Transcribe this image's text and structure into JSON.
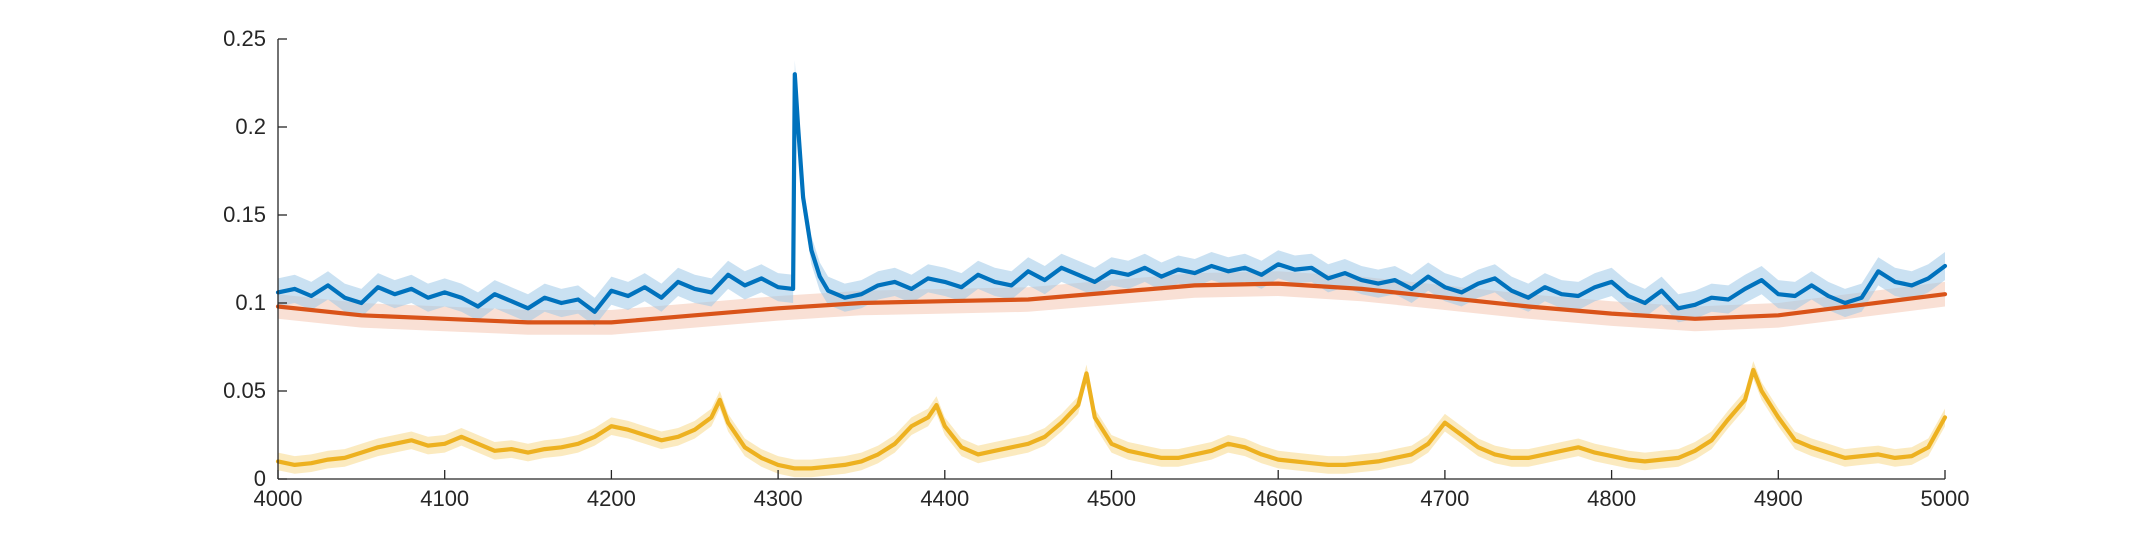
{
  "chart_data": {
    "type": "line",
    "title": "",
    "xlabel": "",
    "ylabel": "",
    "xlim": [
      4000,
      5000
    ],
    "ylim": [
      0,
      0.25
    ],
    "grid": false,
    "legend": "none",
    "x_ticks": [
      {
        "value": 4000,
        "label": "4000"
      },
      {
        "value": 4100,
        "label": "4100"
      },
      {
        "value": 4200,
        "label": "4200"
      },
      {
        "value": 4300,
        "label": "4300"
      },
      {
        "value": 4400,
        "label": "4400"
      },
      {
        "value": 4500,
        "label": "4500"
      },
      {
        "value": 4600,
        "label": "4600"
      },
      {
        "value": 4700,
        "label": "4700"
      },
      {
        "value": 4800,
        "label": "4800"
      },
      {
        "value": 4900,
        "label": "4900"
      },
      {
        "value": 5000,
        "label": "5000"
      }
    ],
    "y_ticks": [
      {
        "value": 0,
        "label": "0"
      },
      {
        "value": 0.05,
        "label": "0.05"
      },
      {
        "value": 0.1,
        "label": "0.1"
      },
      {
        "value": 0.15,
        "label": "0.15"
      },
      {
        "value": 0.2,
        "label": "0.2"
      },
      {
        "value": 0.25,
        "label": "0.25"
      }
    ],
    "series": [
      {
        "color": "#0072BD",
        "band_color": "#9FC8E8",
        "band_half_width": 0.008,
        "x": [
          4000,
          4010,
          4020,
          4030,
          4040,
          4050,
          4060,
          4070,
          4080,
          4090,
          4100,
          4110,
          4120,
          4130,
          4140,
          4150,
          4160,
          4170,
          4180,
          4190,
          4200,
          4210,
          4220,
          4230,
          4240,
          4250,
          4260,
          4270,
          4280,
          4290,
          4300,
          4309,
          4310,
          4312,
          4315,
          4320,
          4325,
          4330,
          4340,
          4350,
          4360,
          4370,
          4380,
          4390,
          4400,
          4410,
          4420,
          4430,
          4440,
          4450,
          4460,
          4470,
          4480,
          4490,
          4500,
          4510,
          4520,
          4530,
          4540,
          4550,
          4560,
          4570,
          4580,
          4590,
          4600,
          4610,
          4620,
          4630,
          4640,
          4650,
          4660,
          4670,
          4680,
          4690,
          4700,
          4710,
          4720,
          4730,
          4740,
          4750,
          4760,
          4770,
          4780,
          4790,
          4800,
          4810,
          4820,
          4830,
          4840,
          4850,
          4860,
          4870,
          4880,
          4890,
          4900,
          4910,
          4920,
          4930,
          4940,
          4950,
          4960,
          4970,
          4980,
          4990,
          5000
        ],
        "y": [
          0.106,
          0.108,
          0.104,
          0.11,
          0.103,
          0.1,
          0.109,
          0.105,
          0.108,
          0.103,
          0.106,
          0.103,
          0.098,
          0.105,
          0.101,
          0.097,
          0.103,
          0.1,
          0.102,
          0.095,
          0.107,
          0.104,
          0.109,
          0.103,
          0.112,
          0.108,
          0.106,
          0.116,
          0.11,
          0.114,
          0.109,
          0.108,
          0.23,
          0.2,
          0.16,
          0.13,
          0.115,
          0.107,
          0.103,
          0.105,
          0.11,
          0.112,
          0.108,
          0.114,
          0.112,
          0.109,
          0.116,
          0.112,
          0.11,
          0.118,
          0.113,
          0.12,
          0.116,
          0.112,
          0.118,
          0.116,
          0.12,
          0.115,
          0.119,
          0.117,
          0.121,
          0.118,
          0.12,
          0.116,
          0.122,
          0.119,
          0.12,
          0.114,
          0.117,
          0.113,
          0.111,
          0.113,
          0.108,
          0.115,
          0.109,
          0.106,
          0.111,
          0.114,
          0.107,
          0.103,
          0.109,
          0.105,
          0.104,
          0.109,
          0.112,
          0.104,
          0.1,
          0.107,
          0.097,
          0.099,
          0.103,
          0.102,
          0.108,
          0.113,
          0.105,
          0.104,
          0.11,
          0.104,
          0.1,
          0.103,
          0.118,
          0.112,
          0.11,
          0.114,
          0.121
        ]
      },
      {
        "color": "#D95319",
        "band_color": "#F4C7B3",
        "band_half_width": 0.007,
        "x": [
          4000,
          4050,
          4100,
          4150,
          4200,
          4250,
          4300,
          4350,
          4400,
          4450,
          4500,
          4550,
          4600,
          4650,
          4700,
          4750,
          4800,
          4850,
          4900,
          4950,
          5000
        ],
        "y": [
          0.098,
          0.093,
          0.091,
          0.089,
          0.089,
          0.093,
          0.097,
          0.1,
          0.101,
          0.102,
          0.106,
          0.11,
          0.111,
          0.108,
          0.103,
          0.098,
          0.094,
          0.091,
          0.093,
          0.099,
          0.105
        ]
      },
      {
        "color": "#EDB120",
        "band_color": "#F7D98A",
        "band_half_width": 0.005,
        "x": [
          4000,
          4010,
          4020,
          4030,
          4040,
          4050,
          4060,
          4070,
          4080,
          4090,
          4100,
          4110,
          4120,
          4130,
          4140,
          4150,
          4160,
          4170,
          4180,
          4190,
          4200,
          4210,
          4220,
          4230,
          4240,
          4250,
          4260,
          4265,
          4270,
          4280,
          4290,
          4300,
          4310,
          4320,
          4330,
          4340,
          4350,
          4360,
          4370,
          4380,
          4390,
          4395,
          4400,
          4410,
          4420,
          4430,
          4440,
          4450,
          4460,
          4470,
          4480,
          4485,
          4490,
          4500,
          4510,
          4520,
          4530,
          4540,
          4550,
          4560,
          4570,
          4580,
          4590,
          4600,
          4610,
          4620,
          4630,
          4640,
          4650,
          4660,
          4670,
          4680,
          4690,
          4700,
          4710,
          4720,
          4730,
          4740,
          4750,
          4760,
          4770,
          4780,
          4790,
          4800,
          4810,
          4820,
          4830,
          4840,
          4850,
          4860,
          4870,
          4880,
          4885,
          4890,
          4900,
          4910,
          4920,
          4930,
          4940,
          4950,
          4960,
          4970,
          4980,
          4990,
          5000
        ],
        "y": [
          0.01,
          0.008,
          0.009,
          0.011,
          0.012,
          0.015,
          0.018,
          0.02,
          0.022,
          0.019,
          0.02,
          0.024,
          0.02,
          0.016,
          0.017,
          0.015,
          0.017,
          0.018,
          0.02,
          0.024,
          0.03,
          0.028,
          0.025,
          0.022,
          0.024,
          0.028,
          0.035,
          0.045,
          0.032,
          0.018,
          0.012,
          0.008,
          0.006,
          0.006,
          0.007,
          0.008,
          0.01,
          0.014,
          0.02,
          0.03,
          0.035,
          0.042,
          0.03,
          0.018,
          0.014,
          0.016,
          0.018,
          0.02,
          0.024,
          0.032,
          0.042,
          0.06,
          0.035,
          0.02,
          0.016,
          0.014,
          0.012,
          0.012,
          0.014,
          0.016,
          0.02,
          0.018,
          0.014,
          0.011,
          0.01,
          0.009,
          0.008,
          0.008,
          0.009,
          0.01,
          0.012,
          0.014,
          0.02,
          0.032,
          0.025,
          0.018,
          0.014,
          0.012,
          0.012,
          0.014,
          0.016,
          0.018,
          0.015,
          0.013,
          0.011,
          0.01,
          0.011,
          0.012,
          0.016,
          0.022,
          0.034,
          0.045,
          0.062,
          0.05,
          0.035,
          0.022,
          0.018,
          0.015,
          0.012,
          0.013,
          0.014,
          0.012,
          0.013,
          0.018,
          0.035
        ]
      }
    ]
  }
}
